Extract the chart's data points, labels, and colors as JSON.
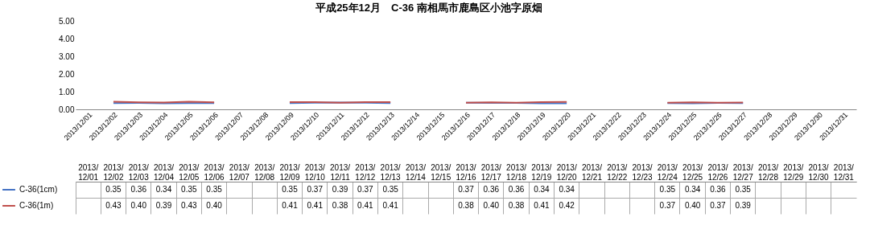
{
  "chart_data": {
    "type": "line",
    "title": "平成25年12月　C-36 南相馬市鹿島区小池字原畑",
    "categories": [
      "2013/12/01",
      "2013/12/02",
      "2013/12/03",
      "2013/12/04",
      "2013/12/05",
      "2013/12/06",
      "2013/12/07",
      "2013/12/08",
      "2013/12/09",
      "2013/12/10",
      "2013/12/11",
      "2013/12/12",
      "2013/12/13",
      "2013/12/14",
      "2013/12/15",
      "2013/12/16",
      "2013/12/17",
      "2013/12/18",
      "2013/12/19",
      "2013/12/20",
      "2013/12/21",
      "2013/12/22",
      "2013/12/23",
      "2013/12/24",
      "2013/12/25",
      "2013/12/26",
      "2013/12/27",
      "2013/12/28",
      "2013/12/29",
      "2013/12/30",
      "2013/12/31"
    ],
    "series": [
      {
        "name": "C-36(1cm)",
        "color": "#4472c4",
        "values": [
          null,
          0.35,
          0.36,
          0.34,
          0.35,
          0.35,
          null,
          null,
          0.35,
          0.37,
          0.39,
          0.37,
          0.35,
          null,
          null,
          0.37,
          0.36,
          0.36,
          0.34,
          0.34,
          null,
          null,
          null,
          0.35,
          0.34,
          0.36,
          0.35,
          null,
          null,
          null,
          null
        ],
        "value_labels": [
          null,
          "0.35",
          "0.36",
          "0.34",
          "0.35",
          "0.35",
          null,
          null,
          "0.35",
          "0.37",
          "0.39",
          "0.37",
          "0.35",
          null,
          null,
          "0.37",
          "0.36",
          "0.36",
          "0.34",
          "0.34",
          null,
          null,
          null,
          "0.35",
          "0.34",
          "0.36",
          "0.35",
          null,
          null,
          null,
          null
        ]
      },
      {
        "name": "C-36(1m)",
        "color": "#c0504d",
        "values": [
          null,
          0.43,
          0.4,
          0.39,
          0.43,
          0.4,
          null,
          null,
          0.41,
          0.41,
          0.38,
          0.41,
          0.41,
          null,
          null,
          0.38,
          0.4,
          0.38,
          0.41,
          0.42,
          null,
          null,
          null,
          0.37,
          0.4,
          0.37,
          0.39,
          null,
          null,
          null,
          null
        ],
        "value_labels": [
          null,
          "0.43",
          "0.40",
          "0.39",
          "0.43",
          "0.40",
          null,
          null,
          "0.41",
          "0.41",
          "0.38",
          "0.41",
          "0.41",
          null,
          null,
          "0.38",
          "0.40",
          "0.38",
          "0.41",
          "0.42",
          null,
          null,
          null,
          "0.37",
          "0.40",
          "0.37",
          "0.39",
          null,
          null,
          null,
          null
        ]
      }
    ],
    "ylim": [
      0,
      5
    ],
    "yticks": [
      {
        "value": 0,
        "label": "0.00"
      },
      {
        "value": 1,
        "label": "1.00"
      },
      {
        "value": 2,
        "label": "2.00"
      },
      {
        "value": 3,
        "label": "3.00"
      },
      {
        "value": 4,
        "label": "4.00"
      },
      {
        "value": 5,
        "label": "5.00"
      }
    ],
    "legend": "bottom left"
  }
}
